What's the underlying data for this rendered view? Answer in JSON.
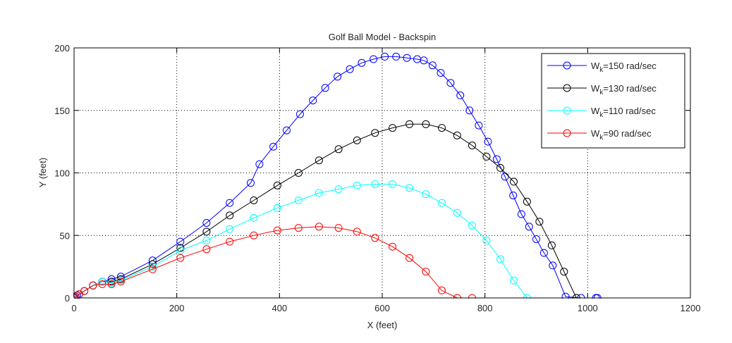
{
  "chart_data": {
    "type": "line",
    "title": "Golf Ball Model - Backspin",
    "xlabel": "X (feet)",
    "ylabel": "Y (feet)",
    "xlim": [
      0,
      1200
    ],
    "ylim": [
      0,
      200
    ],
    "xticks": [
      0,
      200,
      400,
      600,
      800,
      1000,
      1200
    ],
    "yticks": [
      0,
      50,
      100,
      150,
      200
    ],
    "grid": true,
    "legend_position": "top-right",
    "marker": "circle",
    "series": [
      {
        "name_main": "W",
        "name_sub": "k",
        "name_rest": "=150 rad/sec",
        "color": "#0000ff",
        "x": [
          0,
          1,
          3,
          6,
          10,
          20,
          37,
          55,
          73,
          91,
          153,
          207,
          258,
          303,
          344,
          361,
          388,
          414,
          440,
          465,
          489,
          513,
          537,
          560,
          583,
          605,
          627,
          648,
          668,
          681,
          698,
          714,
          733,
          752,
          770,
          788,
          806,
          823,
          839,
          855,
          871,
          886,
          900,
          915,
          932,
          957,
          987,
          1016,
          1019
        ],
        "y": [
          0,
          0.5,
          1.2,
          2,
          3,
          5.5,
          10,
          13,
          15,
          17,
          30,
          45,
          60,
          76,
          92,
          107,
          121,
          134,
          147,
          158,
          168,
          177,
          183,
          188,
          191,
          193,
          193,
          192,
          191,
          190,
          186,
          180,
          172,
          162,
          150,
          138,
          125,
          111,
          97,
          82,
          67,
          57,
          47,
          36,
          26,
          1,
          0,
          0,
          0
        ]
      },
      {
        "name_main": "W",
        "name_sub": "k",
        "name_rest": "=130 rad/sec",
        "color": "#000000",
        "x": [
          0,
          3,
          10,
          20,
          37,
          55,
          73,
          91,
          153,
          207,
          258,
          303,
          350,
          396,
          437,
          477,
          515,
          551,
          586,
          620,
          653,
          685,
          716,
          746,
          775,
          803,
          830,
          856,
          882,
          906,
          930,
          954,
          978
        ],
        "y": [
          0,
          1.2,
          3,
          5.5,
          10,
          13,
          13,
          15,
          27,
          40,
          53,
          66,
          78,
          90,
          100,
          110,
          119,
          126,
          132,
          136,
          139,
          139,
          136,
          130,
          122,
          113,
          104,
          93,
          77,
          61,
          42,
          21,
          0
        ]
      },
      {
        "name_main": "W",
        "name_sub": "k",
        "name_rest": "=110 rad/sec",
        "color": "#00ffff",
        "x": [
          0,
          3,
          10,
          20,
          37,
          55,
          73,
          91,
          153,
          207,
          258,
          303,
          350,
          396,
          437,
          477,
          515,
          551,
          586,
          620,
          653,
          685,
          716,
          746,
          775,
          803,
          830,
          856,
          882
        ],
        "y": [
          0,
          1.2,
          3,
          5.5,
          10,
          13,
          12,
          14,
          25,
          38,
          46,
          55,
          64,
          72,
          78,
          84,
          87,
          90,
          91,
          91,
          88,
          83,
          76,
          68,
          58,
          46,
          31,
          14,
          0
        ]
      },
      {
        "name_main": "W",
        "name_sub": "k",
        "name_rest": "=90 rad/sec",
        "color": "#ff0000",
        "x": [
          0,
          3,
          10,
          20,
          37,
          55,
          73,
          91,
          153,
          207,
          258,
          303,
          350,
          396,
          437,
          477,
          515,
          551,
          586,
          620,
          653,
          685,
          716,
          746,
          775
        ],
        "y": [
          0,
          1.2,
          3,
          5.5,
          10,
          11,
          11,
          13,
          23,
          32,
          39,
          45,
          50,
          54,
          56,
          57,
          56,
          53,
          48,
          41,
          32,
          21,
          6,
          0,
          0
        ]
      }
    ]
  }
}
